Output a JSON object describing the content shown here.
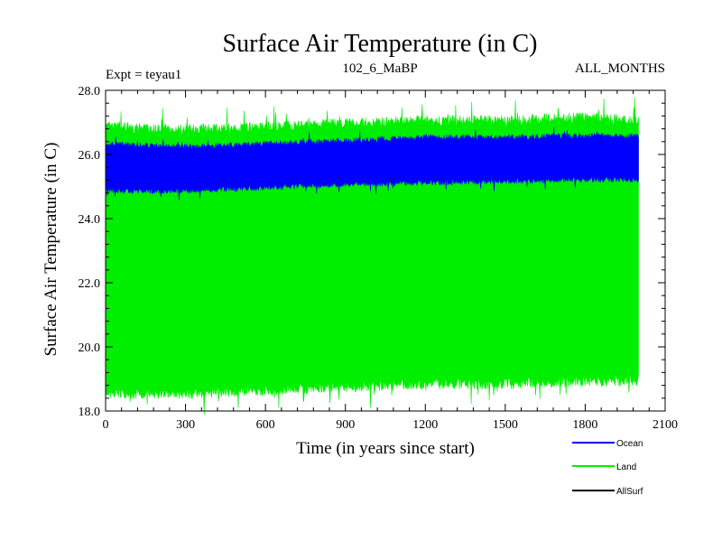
{
  "chart_data": {
    "type": "line",
    "title": "Surface Air Temperature (in C)",
    "subtitle_left": "Expt = teyau1",
    "subtitle_center": "102_6_MaBP",
    "subtitle_right": "ALL_MONTHS",
    "xlabel": "Time (in years since start)",
    "ylabel": "Surface Air Temperature (in C)",
    "xlim": [
      0,
      2100
    ],
    "ylim": [
      18.0,
      28.0
    ],
    "x_ticks": [
      0,
      300,
      600,
      900,
      1200,
      1500,
      1800,
      2100
    ],
    "x_tick_labels": [
      "0",
      "300",
      "600",
      "900",
      "1200",
      "1500",
      "1800",
      "2100"
    ],
    "y_ticks": [
      18.0,
      20.0,
      22.0,
      24.0,
      26.0,
      28.0
    ],
    "y_tick_labels": [
      "18.0",
      "20.0",
      "22.0",
      "24.0",
      "26.0",
      "28.0"
    ],
    "x_range": [
      0,
      2000
    ],
    "series": [
      {
        "name": "Land",
        "color": "#00ee00",
        "envelope_x": [
          0,
          300,
          600,
          900,
          1200,
          1500,
          1800,
          2000
        ],
        "envelope_low": [
          18.6,
          18.6,
          18.7,
          18.8,
          18.9,
          18.9,
          19.0,
          19.0
        ],
        "envelope_high": [
          26.8,
          26.7,
          26.8,
          26.9,
          27.0,
          27.0,
          27.1,
          27.0
        ],
        "inner_low": [
          24.7,
          24.7,
          24.8,
          24.9,
          24.95,
          25.0,
          25.05,
          25.05
        ],
        "inner_high": [
          26.5,
          26.4,
          26.5,
          26.6,
          26.7,
          26.7,
          26.75,
          26.75
        ]
      },
      {
        "name": "Ocean",
        "color": "#0000ff",
        "envelope_x": [
          0,
          300,
          600,
          900,
          1200,
          1500,
          1800,
          2000
        ],
        "envelope_low": [
          24.9,
          24.9,
          25.0,
          25.1,
          25.15,
          25.2,
          25.25,
          25.25
        ],
        "envelope_high": [
          26.3,
          26.2,
          26.3,
          26.4,
          26.5,
          26.5,
          26.55,
          26.55
        ]
      },
      {
        "name": "AllSurf",
        "color": "#000000",
        "envelope_x": [],
        "envelope_low": [],
        "envelope_high": []
      }
    ],
    "legend": [
      {
        "label": "Ocean",
        "color": "#0000ff"
      },
      {
        "label": "Land",
        "color": "#00ee00"
      },
      {
        "label": "AllSurf",
        "color": "#000000"
      }
    ],
    "legend_placement": "bottom-right"
  }
}
